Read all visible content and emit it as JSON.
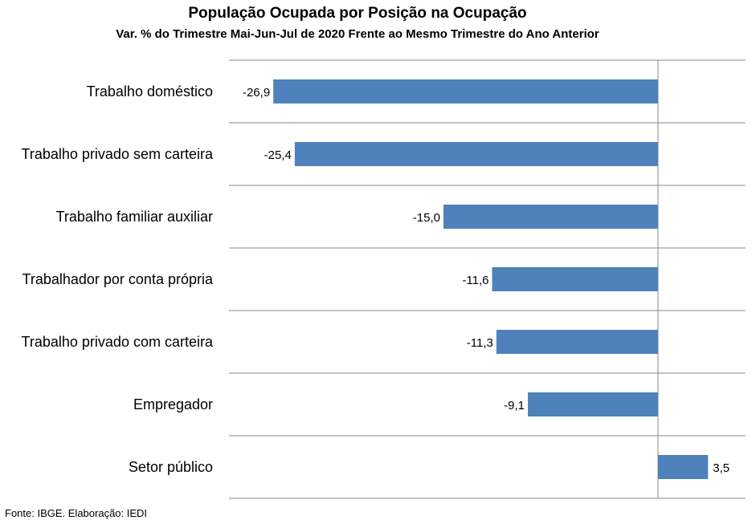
{
  "chart_data": {
    "type": "bar",
    "orientation": "horizontal",
    "title": "População Ocupada por Posição na Ocupação",
    "subtitle": "Var. % do Trimestre Mai-Jun-Jul de 2020 Frente ao Mesmo Trimestre do Ano Anterior",
    "categories": [
      "Trabalho doméstico",
      "Trabalho privado sem carteira",
      "Trabalho familiar auxiliar",
      "Trabalhador por conta própria",
      "Trabalho privado com carteira",
      "Empregador",
      "Setor público"
    ],
    "values": [
      -26.9,
      -25.4,
      -15.0,
      -11.6,
      -11.3,
      -9.1,
      3.5
    ],
    "value_labels": [
      "-26,9",
      "-25,4",
      "-15,0",
      "-11,6",
      "-11,3",
      "-9,1",
      "3,5"
    ],
    "xlim": [
      -30,
      6
    ],
    "bar_color": "#4f81bd",
    "grid": true
  },
  "footer": {
    "source": "Fonte: IBGE. Elaboração: IEDI"
  }
}
